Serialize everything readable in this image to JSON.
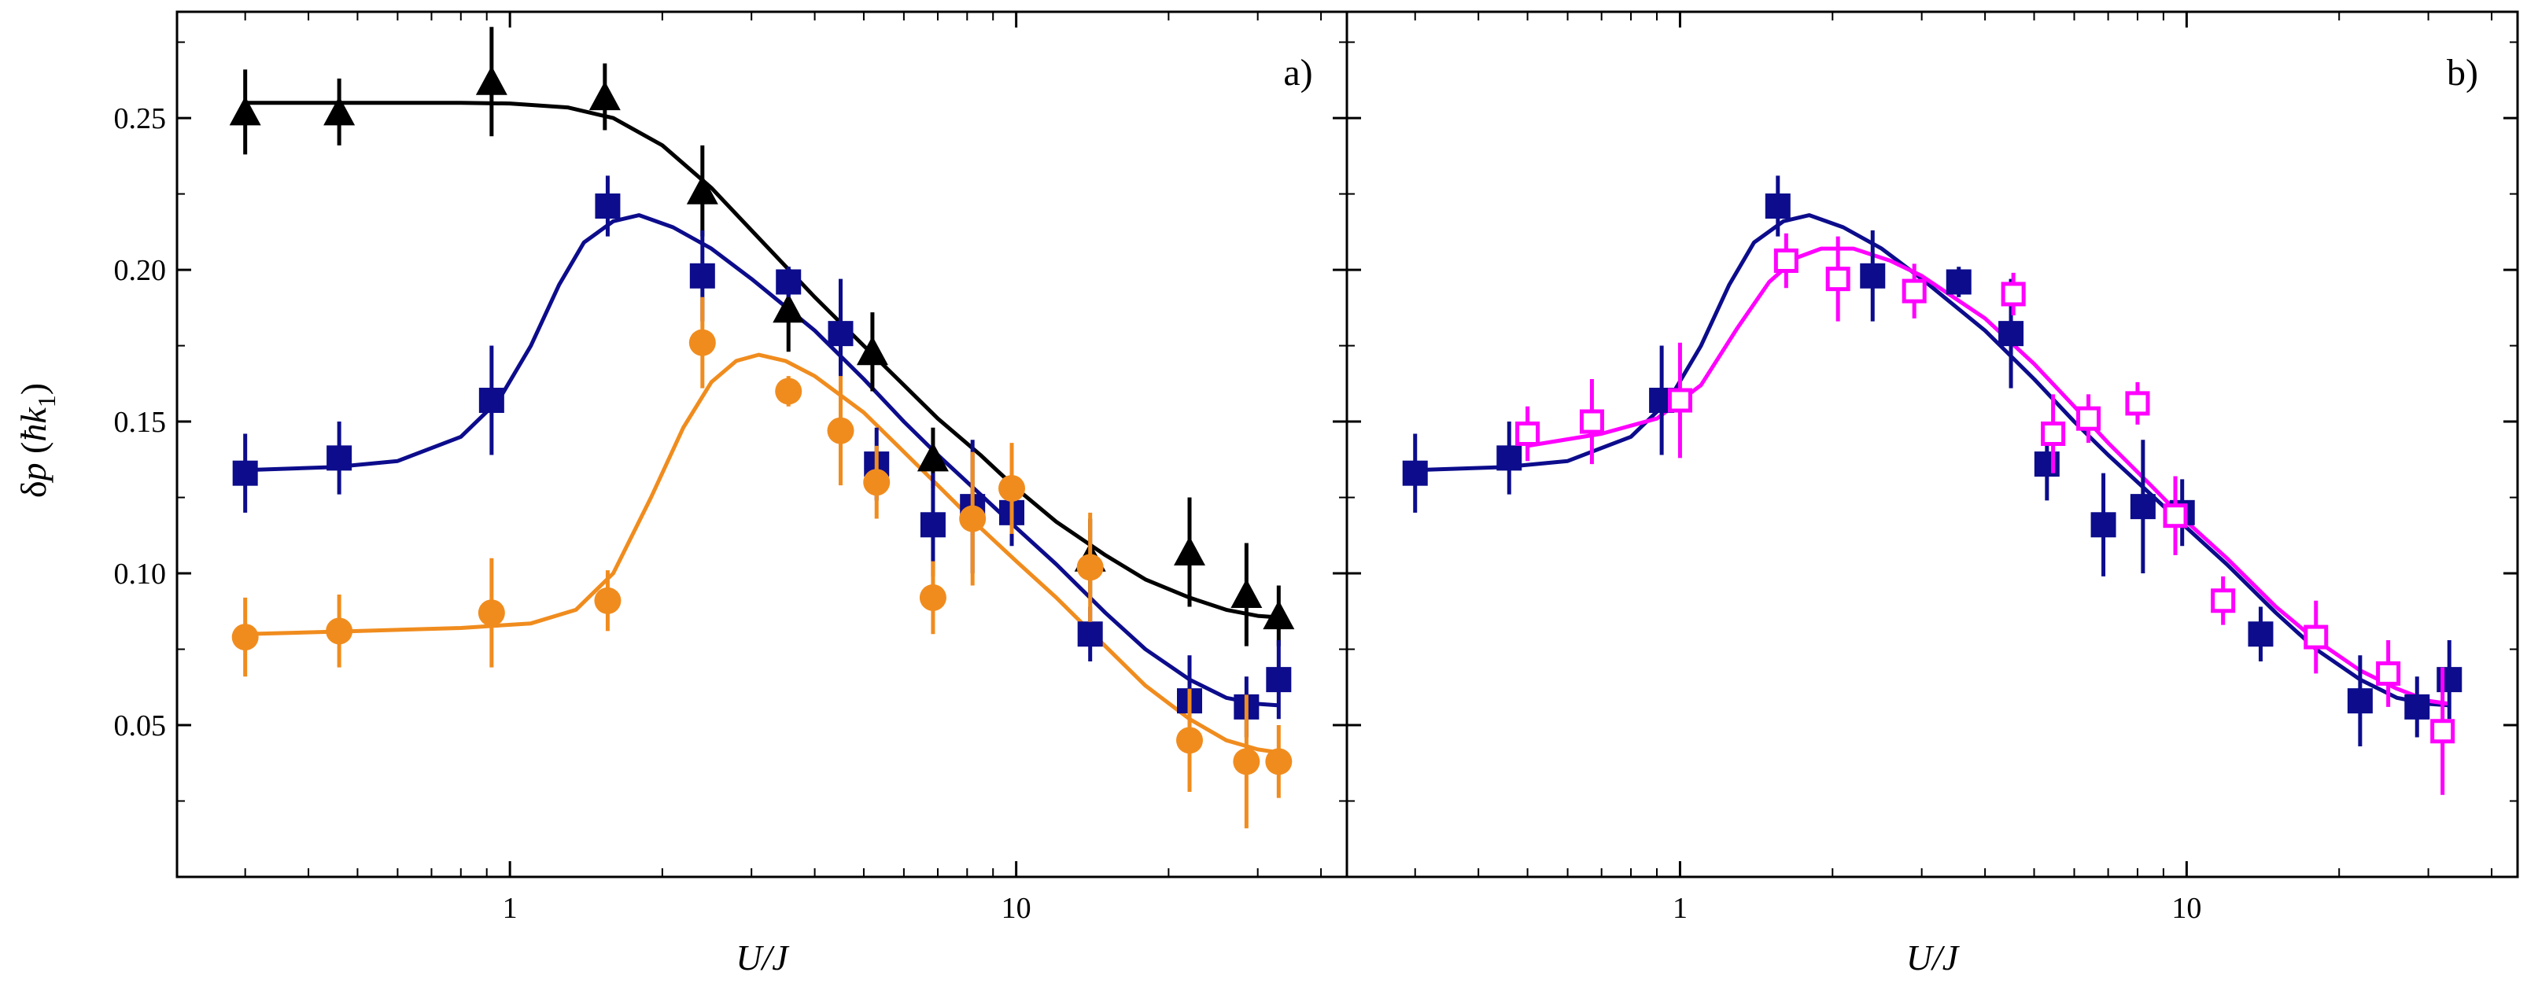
{
  "chart_data": [
    {
      "type": "scatter",
      "panel_label": "a)",
      "xlabel": "U/J",
      "ylabel": "δp (ħk₁)",
      "ylabel_parts": [
        "δ",
        "p",
        " (",
        "ħk",
        "1",
        ")"
      ],
      "x_scale": "log",
      "xlim": [
        0.22,
        45
      ],
      "ylim": [
        0.0,
        0.285
      ],
      "x_ticks": [
        1,
        10
      ],
      "x_tick_labels": [
        "1",
        "10"
      ],
      "y_ticks": [
        0.05,
        0.1,
        0.15,
        0.2,
        0.25
      ],
      "y_tick_labels": [
        "0.05",
        "0.10",
        "0.15",
        "0.20",
        "0.25"
      ],
      "series": [
        {
          "name": "triangles",
          "marker": "triangle",
          "color": "#000000",
          "points": [
            {
              "x": 0.3,
              "y": 0.252,
              "err": 0.014
            },
            {
              "x": 0.46,
              "y": 0.252,
              "err": 0.011
            },
            {
              "x": 0.92,
              "y": 0.262,
              "err": 0.018
            },
            {
              "x": 1.54,
              "y": 0.257,
              "err": 0.011
            },
            {
              "x": 2.4,
              "y": 0.226,
              "err": 0.015
            },
            {
              "x": 3.55,
              "y": 0.187,
              "err": 0.014
            },
            {
              "x": 5.2,
              "y": 0.173,
              "err": 0.013
            },
            {
              "x": 6.85,
              "y": 0.138,
              "err": 0.01
            },
            {
              "x": 14.0,
              "y": 0.105,
              "err": 0.013
            },
            {
              "x": 22.0,
              "y": 0.107,
              "err": 0.018
            },
            {
              "x": 28.5,
              "y": 0.093,
              "err": 0.017
            },
            {
              "x": 33.0,
              "y": 0.086,
              "err": 0.01
            }
          ],
          "fit": [
            [
              0.3,
              0.255
            ],
            [
              0.5,
              0.255
            ],
            [
              0.8,
              0.255
            ],
            [
              1.0,
              0.2548
            ],
            [
              1.3,
              0.2535
            ],
            [
              1.6,
              0.25
            ],
            [
              2.0,
              0.241
            ],
            [
              2.5,
              0.227
            ],
            [
              3.0,
              0.213
            ],
            [
              4.0,
              0.191
            ],
            [
              5.0,
              0.175
            ],
            [
              6.0,
              0.162
            ],
            [
              7.0,
              0.151
            ],
            [
              8.5,
              0.139
            ],
            [
              10.0,
              0.128
            ],
            [
              12.0,
              0.117
            ],
            [
              15.0,
              0.106
            ],
            [
              18.0,
              0.098
            ],
            [
              22.0,
              0.092
            ],
            [
              26.0,
              0.088
            ],
            [
              30.0,
              0.086
            ],
            [
              33.0,
              0.0855
            ]
          ]
        },
        {
          "name": "filled squares",
          "marker": "square",
          "color": "#0c0c8c",
          "points": [
            {
              "x": 0.3,
              "y": 0.133,
              "err": 0.013
            },
            {
              "x": 0.46,
              "y": 0.138,
              "err": 0.012
            },
            {
              "x": 0.92,
              "y": 0.157,
              "err": 0.018
            },
            {
              "x": 1.56,
              "y": 0.221,
              "err": 0.01
            },
            {
              "x": 2.4,
              "y": 0.198,
              "err": 0.015
            },
            {
              "x": 3.55,
              "y": 0.196,
              "err": 0.005
            },
            {
              "x": 4.5,
              "y": 0.179,
              "err": 0.018
            },
            {
              "x": 5.3,
              "y": 0.136,
              "err": 0.012
            },
            {
              "x": 6.85,
              "y": 0.116,
              "err": 0.017
            },
            {
              "x": 8.2,
              "y": 0.122,
              "err": 0.022
            },
            {
              "x": 9.8,
              "y": 0.12,
              "err": 0.011
            },
            {
              "x": 14.0,
              "y": 0.08,
              "err": 0.009
            },
            {
              "x": 22.0,
              "y": 0.058,
              "err": 0.015
            },
            {
              "x": 28.5,
              "y": 0.056,
              "err": 0.01
            },
            {
              "x": 33.0,
              "y": 0.065,
              "err": 0.013
            }
          ],
          "fit": [
            [
              0.3,
              0.134
            ],
            [
              0.45,
              0.135
            ],
            [
              0.6,
              0.137
            ],
            [
              0.8,
              0.145
            ],
            [
              0.95,
              0.157
            ],
            [
              1.1,
              0.175
            ],
            [
              1.25,
              0.195
            ],
            [
              1.4,
              0.209
            ],
            [
              1.6,
              0.216
            ],
            [
              1.8,
              0.218
            ],
            [
              2.1,
              0.214
            ],
            [
              2.5,
              0.207
            ],
            [
              3.0,
              0.197
            ],
            [
              4.0,
              0.18
            ],
            [
              5.0,
              0.164
            ],
            [
              6.0,
              0.15
            ],
            [
              7.0,
              0.139
            ],
            [
              8.5,
              0.126
            ],
            [
              10.0,
              0.115
            ],
            [
              12.0,
              0.103
            ],
            [
              15.0,
              0.087
            ],
            [
              18.0,
              0.075
            ],
            [
              22.0,
              0.065
            ],
            [
              26.0,
              0.059
            ],
            [
              30.0,
              0.057
            ],
            [
              33.0,
              0.0565
            ]
          ]
        },
        {
          "name": "circles",
          "marker": "circle",
          "color": "#f08c1e",
          "points": [
            {
              "x": 0.3,
              "y": 0.079,
              "err": 0.013
            },
            {
              "x": 0.46,
              "y": 0.081,
              "err": 0.012
            },
            {
              "x": 0.92,
              "y": 0.087,
              "err": 0.018
            },
            {
              "x": 1.56,
              "y": 0.091,
              "err": 0.01
            },
            {
              "x": 2.4,
              "y": 0.176,
              "err": 0.015
            },
            {
              "x": 3.55,
              "y": 0.16,
              "err": 0.005
            },
            {
              "x": 4.5,
              "y": 0.147,
              "err": 0.018
            },
            {
              "x": 5.3,
              "y": 0.13,
              "err": 0.012
            },
            {
              "x": 6.85,
              "y": 0.092,
              "err": 0.012
            },
            {
              "x": 8.2,
              "y": 0.118,
              "err": 0.022
            },
            {
              "x": 9.8,
              "y": 0.128,
              "err": 0.015
            },
            {
              "x": 14.0,
              "y": 0.102,
              "err": 0.018
            },
            {
              "x": 22.0,
              "y": 0.045,
              "err": 0.017
            },
            {
              "x": 28.5,
              "y": 0.038,
              "err": 0.022
            },
            {
              "x": 33.0,
              "y": 0.038,
              "err": 0.012
            }
          ],
          "fit": [
            [
              0.3,
              0.08
            ],
            [
              0.5,
              0.081
            ],
            [
              0.8,
              0.082
            ],
            [
              1.1,
              0.0835
            ],
            [
              1.35,
              0.088
            ],
            [
              1.6,
              0.1
            ],
            [
              1.9,
              0.125
            ],
            [
              2.2,
              0.148
            ],
            [
              2.5,
              0.163
            ],
            [
              2.8,
              0.17
            ],
            [
              3.1,
              0.172
            ],
            [
              3.5,
              0.17
            ],
            [
              4.0,
              0.165
            ],
            [
              5.0,
              0.153
            ],
            [
              6.0,
              0.14
            ],
            [
              7.0,
              0.129
            ],
            [
              8.5,
              0.115
            ],
            [
              10.0,
              0.104
            ],
            [
              12.0,
              0.092
            ],
            [
              15.0,
              0.076
            ],
            [
              18.0,
              0.063
            ],
            [
              22.0,
              0.052
            ],
            [
              26.0,
              0.045
            ],
            [
              30.0,
              0.042
            ],
            [
              33.0,
              0.041
            ]
          ]
        }
      ]
    },
    {
      "type": "scatter",
      "panel_label": "b)",
      "xlabel": "U/J",
      "x_scale": "log",
      "xlim": [
        0.22,
        45
      ],
      "ylim": [
        0.0,
        0.285
      ],
      "x_ticks": [
        1,
        10
      ],
      "x_tick_labels": [
        "1",
        "10"
      ],
      "y_ticks": [
        0.05,
        0.1,
        0.15,
        0.2,
        0.25
      ],
      "series": [
        {
          "name": "filled squares",
          "marker": "square",
          "color": "#0c0c8c",
          "points": [
            {
              "x": 0.3,
              "y": 0.133,
              "err": 0.013
            },
            {
              "x": 0.46,
              "y": 0.138,
              "err": 0.012
            },
            {
              "x": 0.92,
              "y": 0.157,
              "err": 0.018
            },
            {
              "x": 1.56,
              "y": 0.221,
              "err": 0.01
            },
            {
              "x": 2.4,
              "y": 0.198,
              "err": 0.015
            },
            {
              "x": 3.55,
              "y": 0.196,
              "err": 0.005
            },
            {
              "x": 4.5,
              "y": 0.179,
              "err": 0.018
            },
            {
              "x": 5.3,
              "y": 0.136,
              "err": 0.012
            },
            {
              "x": 6.85,
              "y": 0.116,
              "err": 0.017
            },
            {
              "x": 8.2,
              "y": 0.122,
              "err": 0.022
            },
            {
              "x": 9.8,
              "y": 0.12,
              "err": 0.011
            },
            {
              "x": 14.0,
              "y": 0.08,
              "err": 0.009
            },
            {
              "x": 22.0,
              "y": 0.058,
              "err": 0.015
            },
            {
              "x": 28.5,
              "y": 0.056,
              "err": 0.01
            },
            {
              "x": 33.0,
              "y": 0.065,
              "err": 0.013
            }
          ],
          "fit": [
            [
              0.3,
              0.134
            ],
            [
              0.45,
              0.135
            ],
            [
              0.6,
              0.137
            ],
            [
              0.8,
              0.145
            ],
            [
              0.95,
              0.157
            ],
            [
              1.1,
              0.175
            ],
            [
              1.25,
              0.195
            ],
            [
              1.4,
              0.209
            ],
            [
              1.6,
              0.216
            ],
            [
              1.8,
              0.218
            ],
            [
              2.1,
              0.214
            ],
            [
              2.5,
              0.207
            ],
            [
              3.0,
              0.197
            ],
            [
              4.0,
              0.18
            ],
            [
              5.0,
              0.164
            ],
            [
              6.0,
              0.15
            ],
            [
              7.0,
              0.139
            ],
            [
              8.5,
              0.126
            ],
            [
              10.0,
              0.115
            ],
            [
              12.0,
              0.103
            ],
            [
              15.0,
              0.087
            ],
            [
              18.0,
              0.075
            ],
            [
              22.0,
              0.065
            ],
            [
              26.0,
              0.059
            ],
            [
              30.0,
              0.057
            ],
            [
              33.0,
              0.0565
            ]
          ]
        },
        {
          "name": "open squares",
          "marker": "open-square",
          "color": "#ff00ff",
          "points": [
            {
              "x": 0.5,
              "y": 0.146,
              "err": 0.009
            },
            {
              "x": 0.67,
              "y": 0.15,
              "err": 0.014
            },
            {
              "x": 1.0,
              "y": 0.157,
              "err": 0.019
            },
            {
              "x": 1.62,
              "y": 0.203,
              "err": 0.009
            },
            {
              "x": 2.05,
              "y": 0.197,
              "err": 0.014
            },
            {
              "x": 2.9,
              "y": 0.193,
              "err": 0.009
            },
            {
              "x": 4.55,
              "y": 0.192,
              "err": 0.007
            },
            {
              "x": 5.45,
              "y": 0.146,
              "err": 0.013
            },
            {
              "x": 6.4,
              "y": 0.151,
              "err": 0.008
            },
            {
              "x": 8.0,
              "y": 0.156,
              "err": 0.007
            },
            {
              "x": 9.5,
              "y": 0.119,
              "err": 0.013
            },
            {
              "x": 11.8,
              "y": 0.091,
              "err": 0.008
            },
            {
              "x": 18.0,
              "y": 0.079,
              "err": 0.012
            },
            {
              "x": 25.0,
              "y": 0.067,
              "err": 0.011
            },
            {
              "x": 32.0,
              "y": 0.048,
              "err": 0.021
            }
          ],
          "fit": [
            [
              0.5,
              0.142
            ],
            [
              0.7,
              0.146
            ],
            [
              0.9,
              0.151
            ],
            [
              1.1,
              0.162
            ],
            [
              1.3,
              0.181
            ],
            [
              1.5,
              0.196
            ],
            [
              1.7,
              0.204
            ],
            [
              1.9,
              0.207
            ],
            [
              2.2,
              0.207
            ],
            [
              2.6,
              0.203
            ],
            [
              3.0,
              0.198
            ],
            [
              4.0,
              0.184
            ],
            [
              5.0,
              0.169
            ],
            [
              6.0,
              0.155
            ],
            [
              7.0,
              0.143
            ],
            [
              8.5,
              0.129
            ],
            [
              10.0,
              0.117
            ],
            [
              12.0,
              0.105
            ],
            [
              15.0,
              0.089
            ],
            [
              18.0,
              0.078
            ],
            [
              22.0,
              0.068
            ],
            [
              26.0,
              0.062
            ],
            [
              30.0,
              0.058
            ],
            [
              33.0,
              0.057
            ]
          ]
        }
      ]
    }
  ]
}
